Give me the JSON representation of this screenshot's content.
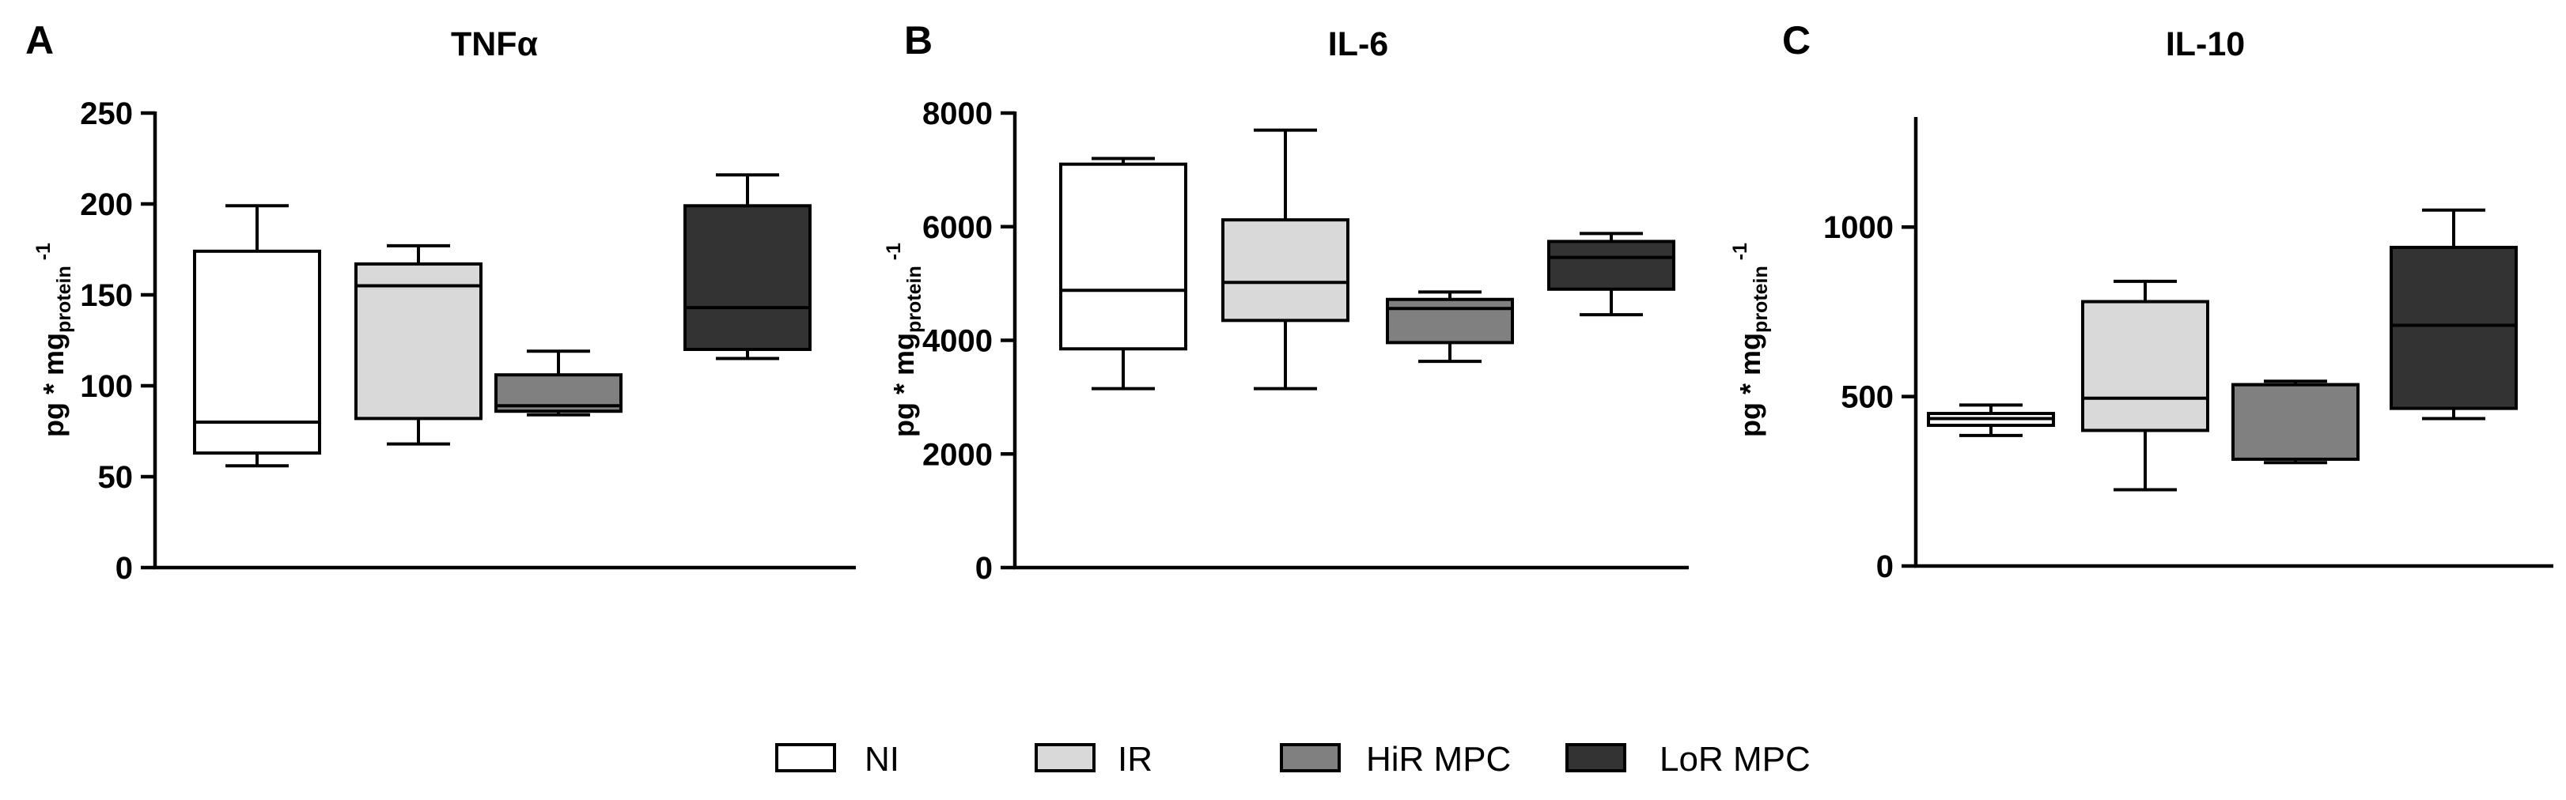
{
  "legend": [
    {
      "label": "NI",
      "color": "#ffffff"
    },
    {
      "label": "IR",
      "color": "#d9d9d9"
    },
    {
      "label": "HiR MPC",
      "color": "#808080"
    },
    {
      "label": "LoR MPC",
      "color": "#333333"
    }
  ],
  "chart_data": [
    {
      "type": "box",
      "panel": "A",
      "title": "TNFα",
      "ylabel": "pg * mg",
      "ylabel_sub": "protein",
      "ylabel_sup": "-1",
      "ylim": [
        0,
        250
      ],
      "yticks": [
        0,
        50,
        100,
        150,
        200,
        250
      ],
      "series": [
        {
          "name": "NI",
          "whisker_low": 56,
          "q1": 63,
          "median": 80,
          "q3": 174,
          "whisker_high": 199
        },
        {
          "name": "IR",
          "whisker_low": 68,
          "q1": 82,
          "median": 155,
          "q3": 167,
          "whisker_high": 177
        },
        {
          "name": "HiR MPC",
          "whisker_low": 84,
          "q1": 86,
          "median": 89,
          "q3": 106,
          "whisker_high": 119
        },
        {
          "name": "LoR MPC",
          "whisker_low": 115,
          "q1": 120,
          "median": 143,
          "q3": 199,
          "whisker_high": 216
        }
      ]
    },
    {
      "type": "box",
      "panel": "B",
      "title": "IL-6",
      "ylabel": "pg * mg",
      "ylabel_sub": "protein",
      "ylabel_sup": "-1",
      "ylim": [
        0,
        8000
      ],
      "yticks": [
        0,
        2000,
        4000,
        6000,
        8000
      ],
      "series": [
        {
          "name": "NI",
          "whisker_low": 3150,
          "q1": 3850,
          "median": 4880,
          "q3": 7100,
          "whisker_high": 7200
        },
        {
          "name": "IR",
          "whisker_low": 3150,
          "q1": 4350,
          "median": 5020,
          "q3": 6120,
          "whisker_high": 7700
        },
        {
          "name": "HiR MPC",
          "whisker_low": 3630,
          "q1": 3960,
          "median": 4560,
          "q3": 4720,
          "whisker_high": 4850
        },
        {
          "name": "LoR MPC",
          "whisker_low": 4450,
          "q1": 4900,
          "median": 5460,
          "q3": 5740,
          "whisker_high": 5880
        }
      ]
    },
    {
      "type": "box",
      "panel": "C",
      "title": "IL-10",
      "ylabel": "pg * mg",
      "ylabel_sub": "protein",
      "ylabel_sup": "-1",
      "ylim": [
        0,
        1320
      ],
      "yticks": [
        0,
        500,
        1000
      ],
      "series": [
        {
          "name": "NI",
          "whisker_low": 385,
          "q1": 415,
          "median": 435,
          "q3": 450,
          "whisker_high": 475
        },
        {
          "name": "IR",
          "whisker_low": 225,
          "q1": 400,
          "median": 495,
          "q3": 780,
          "whisker_high": 840
        },
        {
          "name": "HiR MPC",
          "whisker_low": 305,
          "q1": 315,
          "median": 535,
          "q3": 535,
          "whisker_high": 545
        },
        {
          "name": "LoR MPC",
          "whisker_low": 435,
          "q1": 465,
          "median": 710,
          "q3": 940,
          "whisker_high": 1050
        }
      ]
    }
  ]
}
